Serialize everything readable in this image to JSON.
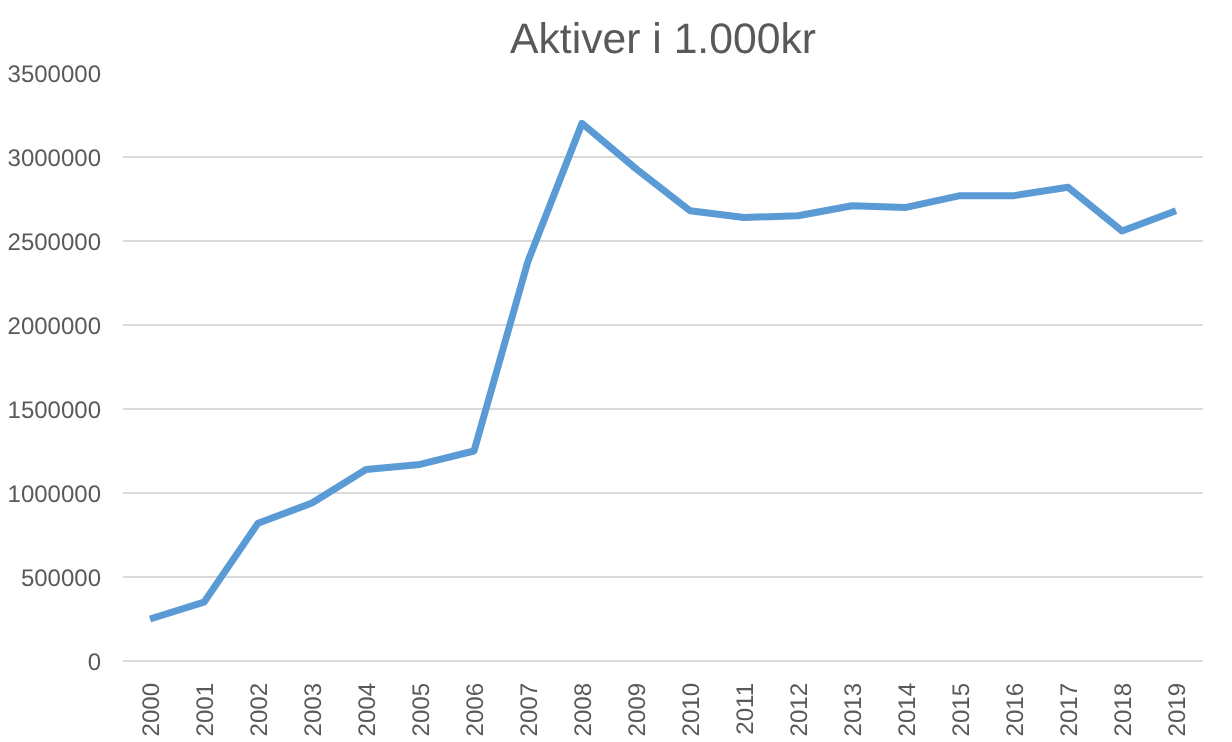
{
  "chart_data": {
    "type": "line",
    "title": "Aktiver i 1.000kr",
    "categories": [
      "2000",
      "2001",
      "2002",
      "2003",
      "2004",
      "2005",
      "2006",
      "2007",
      "2008",
      "2009",
      "2010",
      "2011",
      "2012",
      "2013",
      "2014",
      "2015",
      "2016",
      "2017",
      "2018",
      "2019"
    ],
    "series": [
      {
        "color": "#5b9bd5",
        "values": [
          250000,
          350000,
          820000,
          940000,
          1140000,
          1170000,
          1250000,
          2380000,
          3200000,
          2930000,
          2680000,
          2640000,
          2650000,
          2710000,
          2700000,
          2770000,
          2770000,
          2820000,
          2560000,
          2680000
        ]
      }
    ],
    "ylim": [
      0,
      3500000
    ],
    "yticks": [
      0,
      500000,
      1000000,
      1500000,
      2000000,
      2500000,
      3000000,
      3500000
    ],
    "grid": "y",
    "marker": "none",
    "line_style": "solid"
  }
}
